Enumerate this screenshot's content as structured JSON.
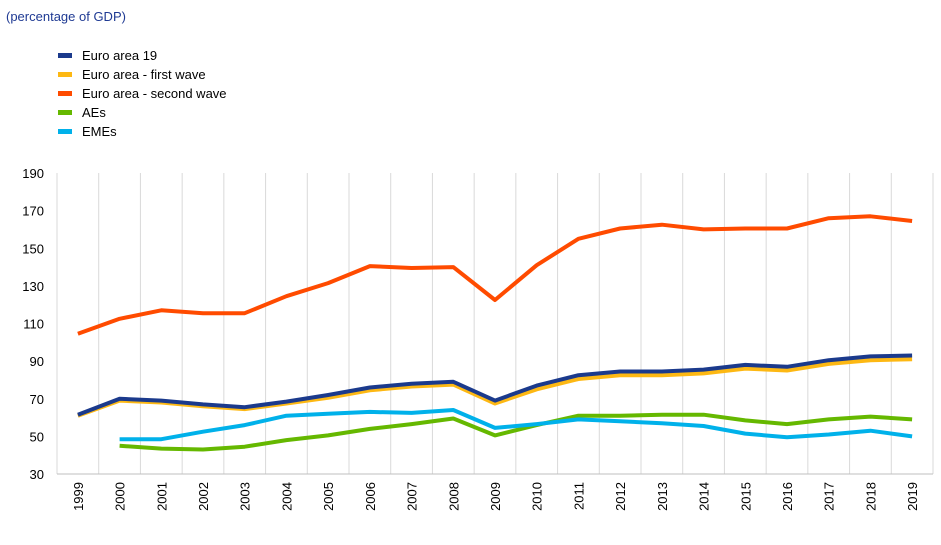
{
  "chart_data": {
    "type": "line",
    "subtitle": "(percentage of GDP)",
    "x": [
      "1999",
      "2000",
      "2001",
      "2002",
      "2003",
      "2004",
      "2005",
      "2006",
      "2007",
      "2008",
      "2009",
      "2010",
      "2011",
      "2012",
      "2013",
      "2014",
      "2015",
      "2016",
      "2017",
      "2018",
      "2019"
    ],
    "ylim": [
      30,
      190
    ],
    "yticks": [
      30,
      50,
      70,
      90,
      110,
      130,
      150,
      170,
      190
    ],
    "grid": "vertical",
    "legend_position": "top-left",
    "series": [
      {
        "name": "Euro area 19",
        "color": "#1b3a8c",
        "values": [
          61.5,
          70,
          69,
          67,
          65.5,
          68.5,
          72,
          76,
          78,
          79,
          69,
          77,
          82.5,
          84.5,
          84.5,
          85.5,
          88,
          87,
          90.5,
          92.5,
          93
        ]
      },
      {
        "name": "Euro area - first wave",
        "color": "#fdb813",
        "values": [
          61,
          69,
          68,
          66,
          64.5,
          67.5,
          70.5,
          74.5,
          76.5,
          77.5,
          67.5,
          75,
          80.5,
          82.5,
          82.5,
          83.5,
          86,
          85,
          88.5,
          90.5,
          91
        ]
      },
      {
        "name": "Euro area - second wave",
        "color": "#ff4b00",
        "values": [
          104.5,
          112.5,
          117,
          115.5,
          115.5,
          124.5,
          131.5,
          140.5,
          139.5,
          140,
          122.5,
          141,
          155,
          160.5,
          162.5,
          160,
          160.5,
          160.5,
          166,
          167,
          164.5
        ]
      },
      {
        "name": "AEs",
        "color": "#65b800",
        "values": [
          null,
          45,
          43.5,
          43,
          44.5,
          48,
          50.5,
          54,
          56.5,
          59.5,
          50.5,
          56,
          61,
          61,
          61.5,
          61.5,
          58.5,
          56.5,
          59,
          60.5,
          59
        ]
      },
      {
        "name": "EMEs",
        "color": "#00b1ea",
        "values": [
          null,
          48.5,
          48.5,
          52.5,
          56,
          61,
          62,
          63,
          62.5,
          64,
          54.5,
          56.5,
          59,
          58,
          57,
          55.5,
          51.5,
          49.5,
          51,
          53,
          50
        ]
      }
    ]
  }
}
